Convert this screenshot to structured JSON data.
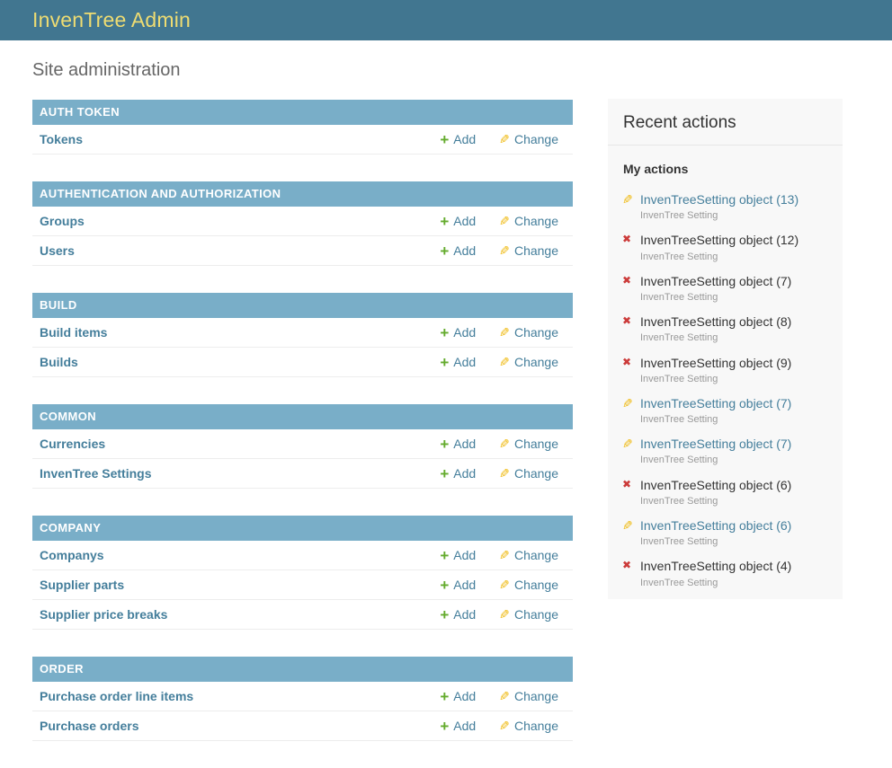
{
  "header": {
    "title": "InvenTree Admin"
  },
  "page_title": "Site administration",
  "module_actions": {
    "add_label": "Add",
    "change_label": "Change"
  },
  "icons": {
    "add": "+",
    "pencil": "✎",
    "delete": "✖"
  },
  "colors": {
    "header_bg": "#417690",
    "header_title": "#eedc72",
    "caption_bg": "#79aec8",
    "link_blue": "#447e9b",
    "add_green": "#64ab2d",
    "change_yellow": "#efb80b",
    "delete_red": "#cc3b3a",
    "panel_bg": "#f8f8f8"
  },
  "modules": [
    {
      "caption": "AUTH TOKEN",
      "models": [
        {
          "name": "Tokens"
        }
      ]
    },
    {
      "caption": "AUTHENTICATION AND AUTHORIZATION",
      "models": [
        {
          "name": "Groups"
        },
        {
          "name": "Users"
        }
      ]
    },
    {
      "caption": "BUILD",
      "models": [
        {
          "name": "Build items"
        },
        {
          "name": "Builds"
        }
      ]
    },
    {
      "caption": "COMMON",
      "models": [
        {
          "name": "Currencies"
        },
        {
          "name": "InvenTree Settings"
        }
      ]
    },
    {
      "caption": "COMPANY",
      "models": [
        {
          "name": "Companys"
        },
        {
          "name": "Supplier parts"
        },
        {
          "name": "Supplier price breaks"
        }
      ]
    },
    {
      "caption": "ORDER",
      "models": [
        {
          "name": "Purchase order line items"
        },
        {
          "name": "Purchase orders"
        }
      ]
    }
  ],
  "actions_panel": {
    "title": "Recent actions",
    "subtitle": "My actions",
    "actions": [
      {
        "type": "change",
        "label": "InvenTreeSetting object (13)",
        "content_type": "InvenTree Setting"
      },
      {
        "type": "delete",
        "label": "InvenTreeSetting object (12)",
        "content_type": "InvenTree Setting"
      },
      {
        "type": "delete",
        "label": "InvenTreeSetting object (7)",
        "content_type": "InvenTree Setting"
      },
      {
        "type": "delete",
        "label": "InvenTreeSetting object (8)",
        "content_type": "InvenTree Setting"
      },
      {
        "type": "delete",
        "label": "InvenTreeSetting object (9)",
        "content_type": "InvenTree Setting"
      },
      {
        "type": "change",
        "label": "InvenTreeSetting object (7)",
        "content_type": "InvenTree Setting"
      },
      {
        "type": "change",
        "label": "InvenTreeSetting object (7)",
        "content_type": "InvenTree Setting"
      },
      {
        "type": "delete",
        "label": "InvenTreeSetting object (6)",
        "content_type": "InvenTree Setting"
      },
      {
        "type": "change",
        "label": "InvenTreeSetting object (6)",
        "content_type": "InvenTree Setting"
      },
      {
        "type": "delete",
        "label": "InvenTreeSetting object (4)",
        "content_type": "InvenTree Setting"
      }
    ]
  }
}
